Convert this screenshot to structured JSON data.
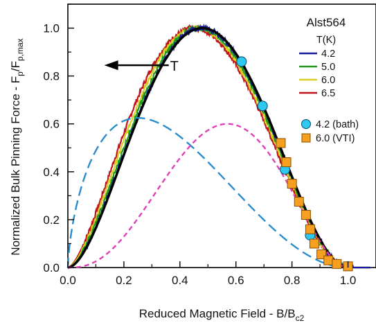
{
  "chart_data": {
    "type": "line",
    "title": "",
    "xlabel_main": "Reduced Magnetic Field - B/B",
    "xlabel_sub": "c2",
    "ylabel_main": "Normalized Bulk Pinning Force - F",
    "ylabel_sub1": "p",
    "ylabel_mid": "/F",
    "ylabel_sub2": "p,max",
    "xlim": [
      0.0,
      1.1
    ],
    "ylim": [
      0.0,
      1.1
    ],
    "x_ticks": [
      "0.0",
      "0.2",
      "0.4",
      "0.6",
      "0.8",
      "1.0"
    ],
    "y_ticks": [
      "0.0",
      "0.2",
      "0.4",
      "0.6",
      "0.8",
      "1.0"
    ],
    "grid": false,
    "legend": {
      "sample": "Alst564",
      "header": "T(K)",
      "placement": "top-right"
    },
    "series": [
      {
        "name": "6.5",
        "color": "#c0141c",
        "kind": "line",
        "peak_x": 0.45
      },
      {
        "name": "6.0",
        "color": "#d8d020",
        "kind": "line",
        "peak_x": 0.46
      },
      {
        "name": "5.0",
        "color": "#1e9a1e",
        "kind": "line",
        "peak_x": 0.47
      },
      {
        "name": "4.2",
        "color": "#1a1aa0",
        "kind": "line",
        "peak_x": 0.478
      },
      {
        "name": "4.2 (bath)",
        "color": "#2ec8f0",
        "kind": "marker-circle",
        "points": [
          [
            0.62,
            0.86
          ],
          [
            0.695,
            0.675
          ],
          [
            0.775,
            0.41
          ],
          [
            0.865,
            0.135
          ]
        ]
      },
      {
        "name": "6.0 (VTI)",
        "color": "#f5a020",
        "kind": "marker-square",
        "points": [
          [
            0.76,
            0.52
          ],
          [
            0.78,
            0.44
          ],
          [
            0.8,
            0.35
          ],
          [
            0.825,
            0.275
          ],
          [
            0.85,
            0.22
          ],
          [
            0.865,
            0.16
          ],
          [
            0.88,
            0.1
          ],
          [
            0.905,
            0.055
          ],
          [
            0.93,
            0.03
          ],
          [
            0.96,
            0.015
          ],
          [
            1.0,
            0.005
          ]
        ]
      }
    ],
    "fit_curves": [
      {
        "color": "#000000",
        "style": "solid",
        "peak_x": 0.48,
        "peak_y": 1.0
      },
      {
        "color": "#2a8ccc",
        "style": "dashed",
        "peak_x": 0.25,
        "peak_y": 0.625
      },
      {
        "color": "#e040b8",
        "style": "dashed",
        "peak_x": 0.57,
        "peak_y": 0.6
      }
    ],
    "annotation": {
      "text": "T",
      "arrow_from": [
        0.36,
        0.845
      ],
      "arrow_to": [
        0.13,
        0.845
      ]
    }
  }
}
